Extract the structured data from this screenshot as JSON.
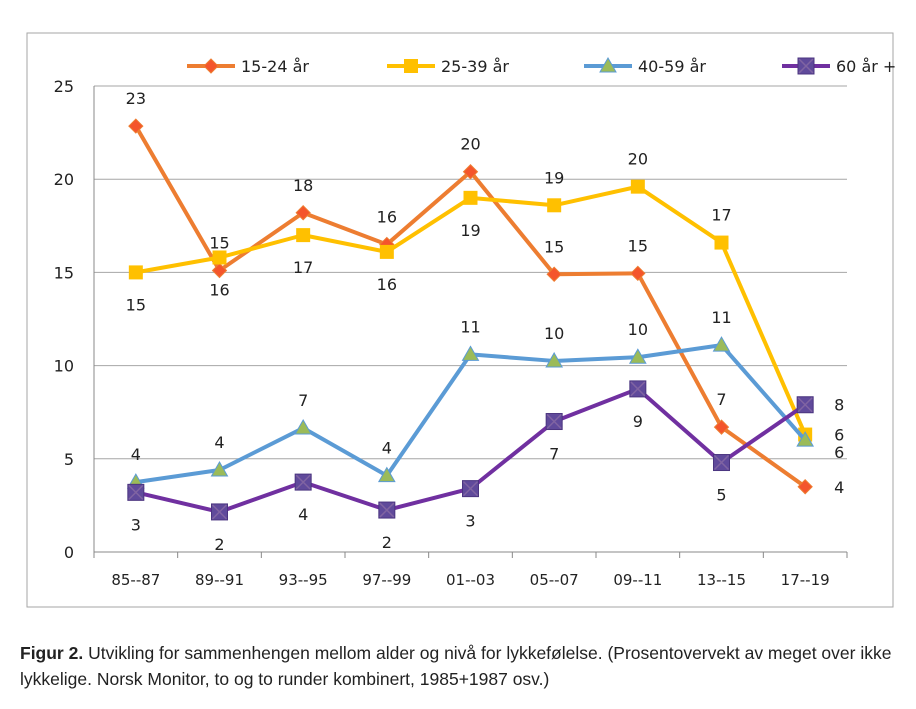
{
  "chart_data": {
    "type": "line",
    "title": "",
    "xlabel": "",
    "ylabel": "",
    "categories": [
      "85--87",
      "89--91",
      "93--95",
      "97--99",
      "01--03",
      "05--07",
      "09--11",
      "13--15",
      "17--19"
    ],
    "ylim": [
      0,
      25
    ],
    "yticks": [
      0,
      5,
      10,
      15,
      20,
      25
    ],
    "grid": true,
    "legend": "top",
    "series": [
      {
        "name": "15-24 år",
        "color": "#ED7D31",
        "marker": "diamond",
        "values": [
          22.85,
          15.1,
          18.2,
          16.5,
          20.4,
          14.9,
          14.95,
          6.7,
          3.5
        ],
        "labels": [
          "23",
          "15",
          "18",
          "16",
          "20",
          "15",
          "15",
          "7",
          "4"
        ]
      },
      {
        "name": "25-39 år",
        "color": "#FFC000",
        "marker": "square",
        "values": [
          15.0,
          15.8,
          17.0,
          16.1,
          19.0,
          18.6,
          19.6,
          16.6,
          6.3
        ],
        "labels": [
          "15",
          "16",
          "17",
          "16",
          "19",
          "19",
          "20",
          "17",
          "6"
        ]
      },
      {
        "name": "40-59 år",
        "color": "#5B9BD5",
        "marker": "triangle",
        "values": [
          3.75,
          4.4,
          6.65,
          4.1,
          10.6,
          10.25,
          10.45,
          11.1,
          6.0
        ],
        "labels": [
          "4",
          "4",
          "7",
          "4",
          "11",
          "10",
          "10",
          "11",
          "6"
        ]
      },
      {
        "name": "60 år +",
        "color": "#7030A0",
        "marker": "xsquare",
        "values": [
          3.2,
          2.15,
          3.75,
          2.25,
          3.4,
          7.0,
          8.75,
          4.8,
          7.9
        ],
        "labels": [
          "3",
          "2",
          "4",
          "2",
          "3",
          "7",
          "9",
          "5",
          "8"
        ]
      }
    ]
  },
  "caption": {
    "label": "Figur 2.",
    "text": " Utvikling for sammenhengen mellom alder og nivå for lykkefølelse. (Prosentovervekt av meget over ikke lykkelige. Norsk Monitor, to og to runder kombinert, 1985+1987 osv.)"
  }
}
